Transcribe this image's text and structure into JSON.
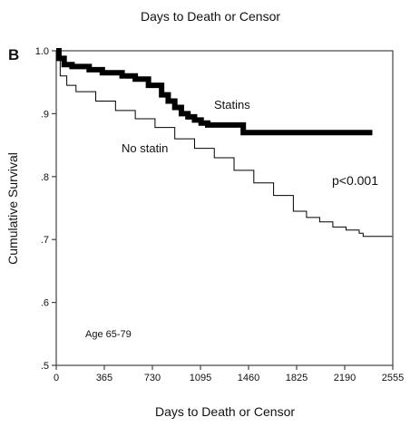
{
  "panel_label": "B",
  "top_title": "Days to Death or Censor",
  "chart_data": {
    "type": "line",
    "title": "Days to Death or Censor",
    "xlabel": "Days to Death or Censor",
    "ylabel": "Cumulative Survival",
    "xlim": [
      0,
      2555
    ],
    "ylim": [
      0.5,
      1.0
    ],
    "x_ticks": [
      0,
      365,
      730,
      1095,
      1460,
      1825,
      2190,
      2555
    ],
    "y_ticks": [
      0.5,
      0.6,
      0.7,
      0.8,
      0.9,
      1.0
    ],
    "y_tick_labels": [
      ".5",
      ".6",
      ".7",
      ".8",
      ".9",
      "1.0"
    ],
    "grid": false,
    "series": [
      {
        "name": "Statins",
        "style": "thick-step",
        "x": [
          0,
          20,
          60,
          120,
          250,
          350,
          500,
          600,
          700,
          800,
          850,
          900,
          950,
          1000,
          1050,
          1100,
          1150,
          1300,
          1390,
          1420,
          2400
        ],
        "y": [
          1.0,
          0.988,
          0.978,
          0.975,
          0.97,
          0.965,
          0.96,
          0.955,
          0.945,
          0.93,
          0.92,
          0.91,
          0.9,
          0.895,
          0.89,
          0.885,
          0.882,
          0.882,
          0.882,
          0.87,
          0.87
        ]
      },
      {
        "name": "No statin",
        "style": "thin-step",
        "x": [
          0,
          30,
          80,
          150,
          300,
          450,
          600,
          750,
          900,
          1050,
          1200,
          1350,
          1500,
          1650,
          1800,
          1900,
          2000,
          2100,
          2200,
          2300,
          2330,
          2550
        ],
        "y": [
          1.0,
          0.96,
          0.945,
          0.935,
          0.92,
          0.905,
          0.892,
          0.878,
          0.86,
          0.845,
          0.83,
          0.81,
          0.79,
          0.77,
          0.745,
          0.735,
          0.728,
          0.72,
          0.715,
          0.71,
          0.705,
          0.705
        ]
      }
    ],
    "annotations": [
      "Statins",
      "No statin",
      "p<0.001",
      "Age 65-79"
    ],
    "colors": {
      "line": "#000000",
      "axis": "#444444"
    }
  }
}
